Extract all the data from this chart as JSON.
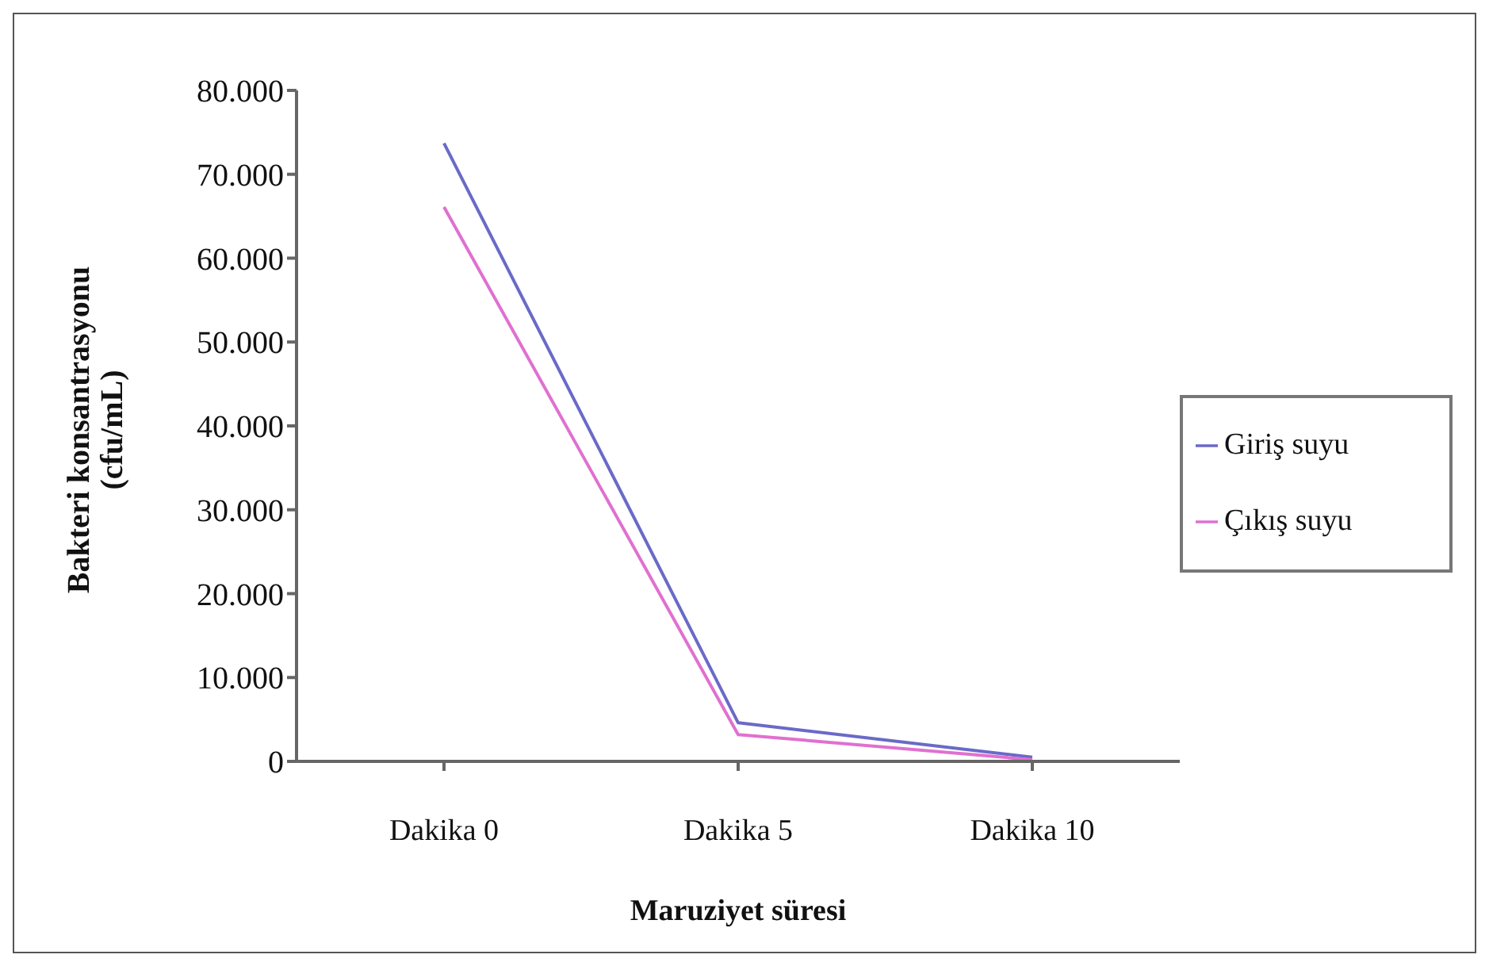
{
  "chart_data": {
    "type": "line",
    "xlabel": "Maruziyet süresi",
    "ylabel": "Bakteri konsantrasyonu\n(cfu/mL)",
    "categories": [
      "Dakika 0",
      "Dakika 5",
      "Dakika 10"
    ],
    "series": [
      {
        "name": "Giriş suyu",
        "color": "#6a6ac8",
        "values": [
          73700,
          4600,
          500
        ]
      },
      {
        "name": "Çıkış suyu",
        "color": "#e070d0",
        "values": [
          66100,
          3200,
          200
        ]
      }
    ],
    "ylim": [
      0,
      80000
    ],
    "yticks": [
      {
        "value": 0,
        "label": "0"
      },
      {
        "value": 10000,
        "label": "10.000"
      },
      {
        "value": 20000,
        "label": "20.000"
      },
      {
        "value": 30000,
        "label": "30.000"
      },
      {
        "value": 40000,
        "label": "40.000"
      },
      {
        "value": 50000,
        "label": "50.000"
      },
      {
        "value": 60000,
        "label": "60.000"
      },
      {
        "value": 70000,
        "label": "70.000"
      },
      {
        "value": 80000,
        "label": "80.000"
      }
    ],
    "grid": false,
    "legend": "right",
    "marker": "none",
    "line_style": "solid"
  }
}
